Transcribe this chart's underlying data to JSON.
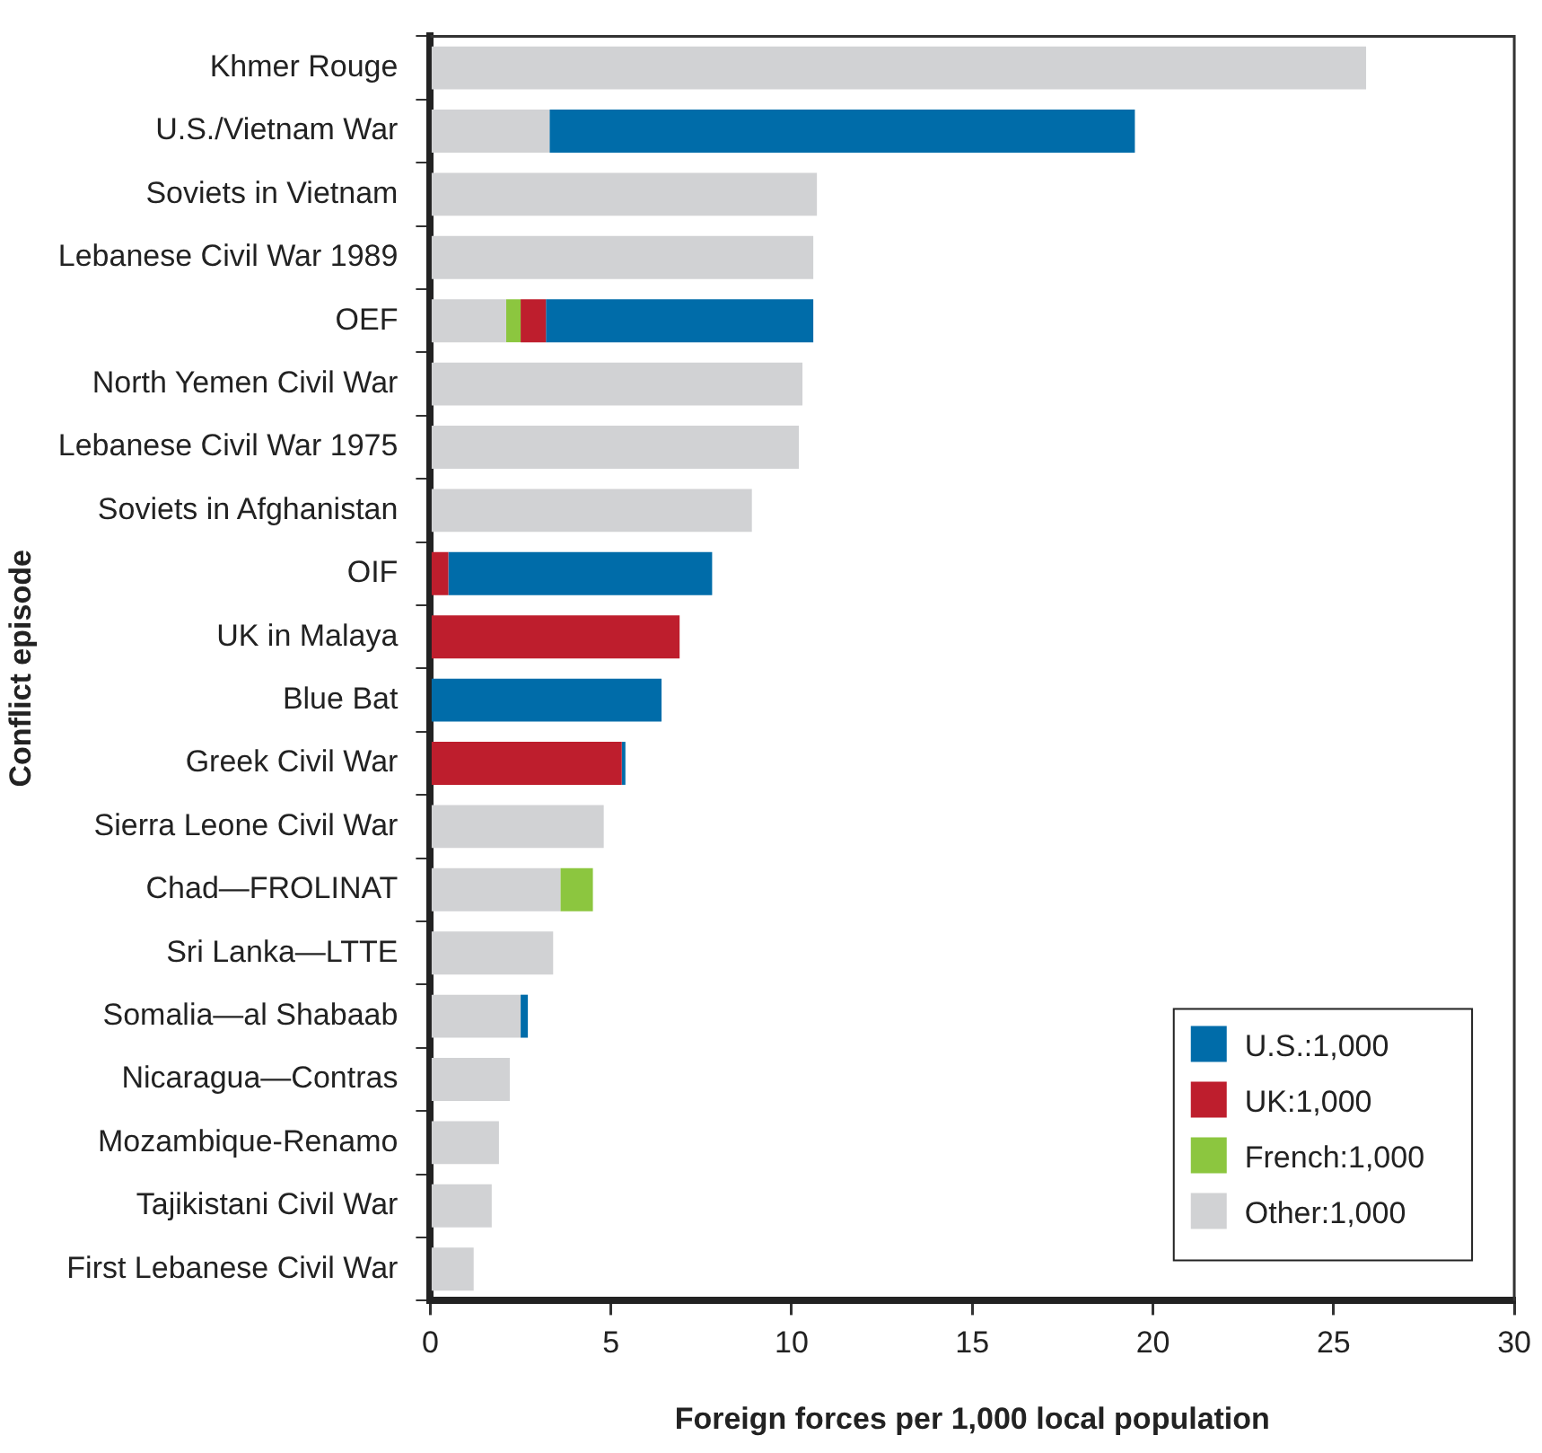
{
  "chart_data": {
    "type": "bar",
    "orientation": "horizontal",
    "stacked": true,
    "xlabel": "Foreign forces per 1,000 local population",
    "ylabel": "Conflict episode",
    "categories": [
      "Khmer Rouge",
      "U.S./Vietnam War",
      "Soviets in Vietnam",
      "Lebanese Civil War 1989",
      "OEF",
      "North Yemen Civil War",
      "Lebanese Civil War 1975",
      "Soviets in Afghanistan",
      "OIF",
      "UK in Malaya",
      "Blue Bat",
      "Greek Civil War",
      "Sierra Leone Civil War",
      "Chad—FROLINAT",
      "Sri Lanka—LTTE",
      "Somalia—al Shabaab",
      "Nicaragua—Contras",
      "Mozambique-Renamo",
      "Tajikistani Civil War",
      "First Lebanese Civil War"
    ],
    "series": [
      {
        "name": "Other:1,000",
        "color": "#d1d2d4",
        "values": [
          25.9,
          3.3,
          10.7,
          10.6,
          2.1,
          10.3,
          10.2,
          8.9,
          null,
          null,
          null,
          null,
          4.8,
          3.6,
          3.4,
          2.5,
          2.2,
          1.9,
          1.7,
          1.2
        ]
      },
      {
        "name": "French:1,000",
        "color": "#8cc63f",
        "values": [
          null,
          null,
          null,
          null,
          0.4,
          null,
          null,
          null,
          null,
          null,
          null,
          null,
          null,
          0.9,
          null,
          null,
          null,
          null,
          null,
          null
        ]
      },
      {
        "name": "UK:1,000",
        "color": "#be1e2d",
        "values": [
          null,
          null,
          null,
          null,
          0.7,
          null,
          null,
          null,
          0.5,
          6.9,
          null,
          5.3,
          null,
          null,
          null,
          null,
          null,
          null,
          null,
          null
        ]
      },
      {
        "name": "U.S.:1,000",
        "color": "#006ca9",
        "values": [
          null,
          16.2,
          null,
          null,
          7.4,
          null,
          null,
          null,
          7.3,
          null,
          6.4,
          0.1,
          null,
          null,
          null,
          0.2,
          null,
          null,
          null,
          null
        ]
      }
    ],
    "xlim": [
      0,
      30
    ],
    "xticks": [
      0,
      5,
      10,
      15,
      20,
      25,
      30
    ],
    "grid": false,
    "legend": "bottom right"
  }
}
